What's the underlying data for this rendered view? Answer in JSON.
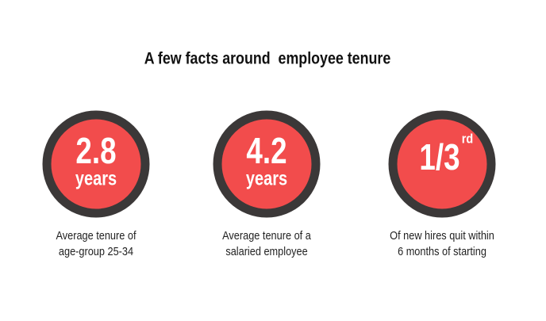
{
  "title": "A few facts around  employee tenure",
  "facts": [
    {
      "value": "2.8",
      "unit": "years",
      "caption": [
        "Average tenure of",
        "age-group 25-34"
      ]
    },
    {
      "value": "4.2",
      "unit": "years",
      "caption": [
        "Average tenure of a",
        "salaried employee"
      ]
    },
    {
      "value": "1/3",
      "superscript": "rd",
      "caption": [
        "Of new hires quit within",
        "6 months of starting"
      ]
    }
  ]
}
